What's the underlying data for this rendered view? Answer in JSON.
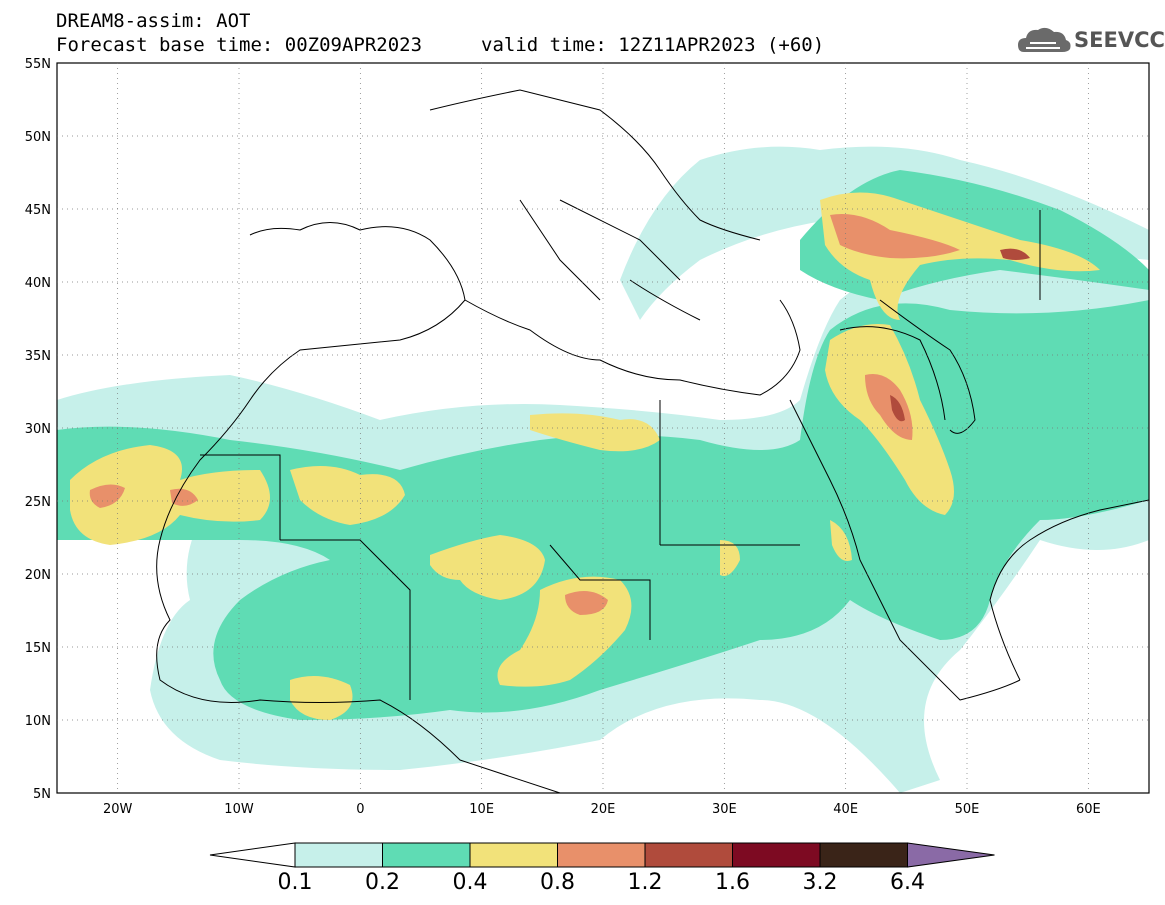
{
  "header": {
    "title_line_1": "DREAM8-assim: AOT",
    "title_line_2": "Forecast base time: 00Z09APR2023",
    "valid_time": "valid time: 12Z11APR2023 (+60)",
    "logo_text": "SEEVCCC"
  },
  "axes": {
    "lat_labels": [
      "55N",
      "50N",
      "45N",
      "40N",
      "35N",
      "30N",
      "25N",
      "20N",
      "15N",
      "10N",
      "5N"
    ],
    "lon_labels": [
      "20W",
      "10W",
      "0",
      "10E",
      "20E",
      "30E",
      "40E",
      "50E",
      "60E"
    ],
    "lat_range": [
      5,
      55
    ],
    "lon_range": [
      -25,
      65
    ]
  },
  "colorbar": {
    "levels": [
      "0.1",
      "0.2",
      "0.4",
      "0.8",
      "1.2",
      "1.6",
      "3.2",
      "6.4"
    ],
    "colors": [
      "#c6f0ea",
      "#5fdcb4",
      "#f2e27a",
      "#e8906a",
      "#b04b3c",
      "#7d0a22",
      "#3a2418",
      "#8a6aa6"
    ]
  }
}
